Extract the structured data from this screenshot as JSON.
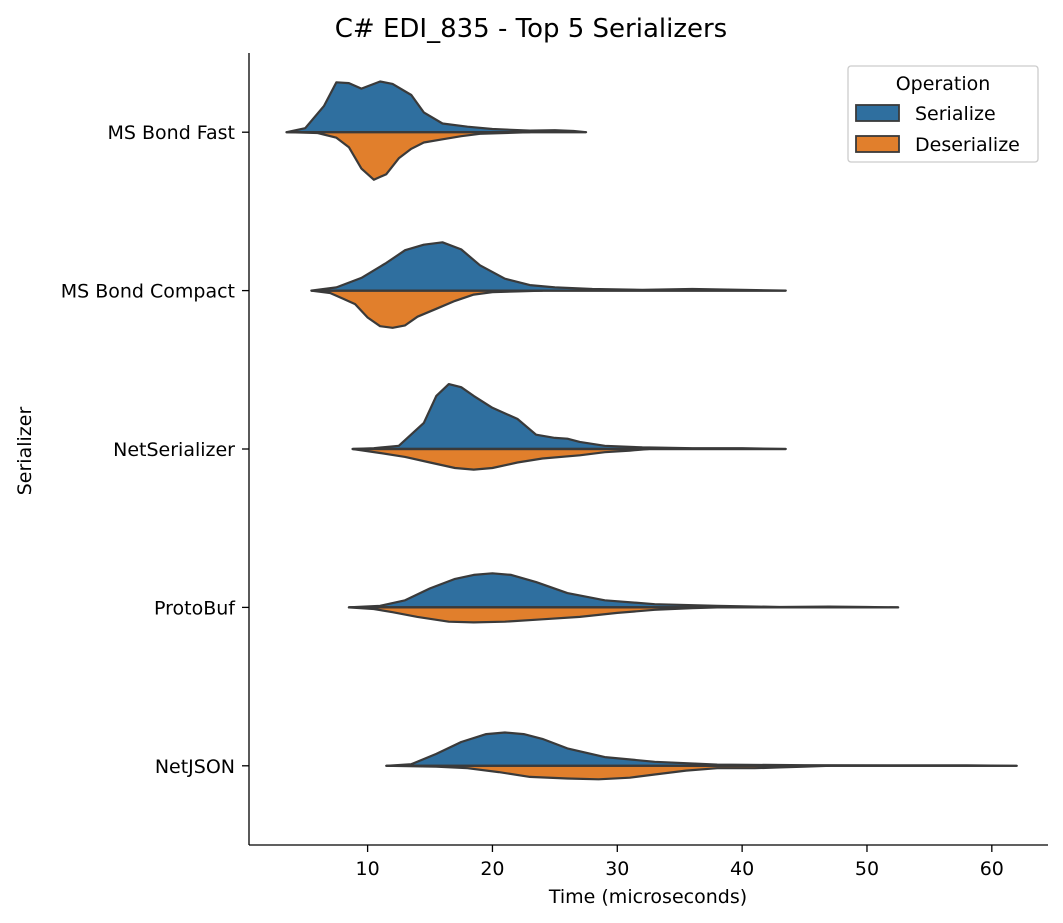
{
  "chart_data": {
    "type": "violin",
    "title": "C# EDI_835 - Top 5 Serializers",
    "xlabel": "Time (microseconds)",
    "ylabel": "Serializer",
    "xlim": [
      0.5,
      64.5
    ],
    "xticks": [
      10,
      20,
      30,
      40,
      50,
      60
    ],
    "split": true,
    "grid": false,
    "legend": {
      "title": "Operation",
      "position": "top-right",
      "entries": [
        {
          "label": "Serialize",
          "color": "#2f6f9f"
        },
        {
          "label": "Deserialize",
          "color": "#e17f2c"
        }
      ]
    },
    "categories": [
      "MS Bond Fast",
      "MS Bond Compact",
      "NetSerializer",
      "ProtoBuf",
      "NetJSON"
    ],
    "series": [
      {
        "name": "Serialize",
        "color": "#2f6f9f",
        "shapes": [
          [
            [
              3.5,
              0
            ],
            [
              5,
              0.05
            ],
            [
              6.5,
              0.33
            ],
            [
              7.5,
              0.63
            ],
            [
              8.5,
              0.62
            ],
            [
              9.5,
              0.55
            ],
            [
              11,
              0.64
            ],
            [
              12,
              0.61
            ],
            [
              13.5,
              0.47
            ],
            [
              14.5,
              0.25
            ],
            [
              16,
              0.11
            ],
            [
              18,
              0.07
            ],
            [
              20,
              0.04
            ],
            [
              23,
              0.02
            ],
            [
              25,
              0.025
            ],
            [
              26.5,
              0.015
            ],
            [
              27.5,
              0
            ]
          ],
          [
            [
              5.5,
              0
            ],
            [
              7.5,
              0.04
            ],
            [
              9.5,
              0.16
            ],
            [
              11.5,
              0.35
            ],
            [
              13,
              0.51
            ],
            [
              14.5,
              0.58
            ],
            [
              16,
              0.61
            ],
            [
              17.5,
              0.52
            ],
            [
              19,
              0.32
            ],
            [
              21,
              0.15
            ],
            [
              23,
              0.07
            ],
            [
              25,
              0.04
            ],
            [
              28,
              0.02
            ],
            [
              32,
              0.01
            ],
            [
              36,
              0.02
            ],
            [
              40,
              0.01
            ],
            [
              43.5,
              0
            ]
          ],
          [
            [
              8.8,
              0
            ],
            [
              10.5,
              0.01
            ],
            [
              12.5,
              0.04
            ],
            [
              14.5,
              0.33
            ],
            [
              15.5,
              0.67
            ],
            [
              16.5,
              0.82
            ],
            [
              17.5,
              0.78
            ],
            [
              18.5,
              0.67
            ],
            [
              20,
              0.52
            ],
            [
              22,
              0.38
            ],
            [
              23.5,
              0.18
            ],
            [
              25,
              0.14
            ],
            [
              26,
              0.13
            ],
            [
              27,
              0.09
            ],
            [
              29,
              0.04
            ],
            [
              32,
              0.02
            ],
            [
              36,
              0.01
            ],
            [
              40,
              0.01
            ],
            [
              43.5,
              0
            ]
          ],
          [
            [
              8.5,
              0
            ],
            [
              11,
              0.02
            ],
            [
              13,
              0.09
            ],
            [
              15,
              0.24
            ],
            [
              17,
              0.36
            ],
            [
              18.5,
              0.41
            ],
            [
              20,
              0.43
            ],
            [
              21.5,
              0.41
            ],
            [
              23.5,
              0.32
            ],
            [
              26,
              0.18
            ],
            [
              29,
              0.09
            ],
            [
              33,
              0.04
            ],
            [
              38,
              0.02
            ],
            [
              43,
              0.005
            ],
            [
              47,
              0.01
            ],
            [
              50,
              0.005
            ],
            [
              52.5,
              0
            ]
          ],
          [
            [
              11.5,
              0
            ],
            [
              13.5,
              0.02
            ],
            [
              15.5,
              0.15
            ],
            [
              17.5,
              0.3
            ],
            [
              19.5,
              0.4
            ],
            [
              21,
              0.42
            ],
            [
              22.5,
              0.4
            ],
            [
              24,
              0.34
            ],
            [
              26,
              0.22
            ],
            [
              29,
              0.11
            ],
            [
              33,
              0.05
            ],
            [
              38,
              0.015
            ],
            [
              45,
              0.008
            ],
            [
              52,
              0.005
            ],
            [
              58,
              0.005
            ],
            [
              62,
              0
            ]
          ]
        ]
      },
      {
        "name": "Deserialize",
        "color": "#e17f2c",
        "shapes": [
          [
            [
              3.5,
              0
            ],
            [
              6,
              0.01
            ],
            [
              7.5,
              0.07
            ],
            [
              8.5,
              0.19
            ],
            [
              9.5,
              0.46
            ],
            [
              10.5,
              0.6
            ],
            [
              11.5,
              0.53
            ],
            [
              12.5,
              0.33
            ],
            [
              13.5,
              0.21
            ],
            [
              14.5,
              0.13
            ],
            [
              16,
              0.09
            ],
            [
              17.5,
              0.05
            ],
            [
              19,
              0.02
            ],
            [
              21,
              0.01
            ],
            [
              23,
              0
            ]
          ],
          [
            [
              5.5,
              0
            ],
            [
              7,
              0.03
            ],
            [
              8,
              0.1
            ],
            [
              9,
              0.17
            ],
            [
              10,
              0.34
            ],
            [
              11,
              0.45
            ],
            [
              12,
              0.47
            ],
            [
              13,
              0.44
            ],
            [
              14,
              0.33
            ],
            [
              15.5,
              0.23
            ],
            [
              17,
              0.13
            ],
            [
              18.5,
              0.05
            ],
            [
              20,
              0.02
            ],
            [
              22,
              0.01
            ],
            [
              24,
              0
            ]
          ],
          [
            [
              8.8,
              0
            ],
            [
              11,
              0.05
            ],
            [
              13,
              0.1
            ],
            [
              15,
              0.17
            ],
            [
              17,
              0.24
            ],
            [
              18.5,
              0.26
            ],
            [
              20,
              0.24
            ],
            [
              22,
              0.17
            ],
            [
              24,
              0.12
            ],
            [
              27,
              0.08
            ],
            [
              29,
              0.04
            ],
            [
              31,
              0.02
            ],
            [
              32.5,
              0
            ]
          ],
          [
            [
              8.5,
              0
            ],
            [
              10.5,
              0.02
            ],
            [
              12,
              0.06
            ],
            [
              14,
              0.12
            ],
            [
              16.5,
              0.18
            ],
            [
              18.5,
              0.19
            ],
            [
              21,
              0.18
            ],
            [
              24,
              0.15
            ],
            [
              27,
              0.12
            ],
            [
              30,
              0.07
            ],
            [
              33,
              0.03
            ],
            [
              36,
              0.01
            ],
            [
              38,
              0
            ]
          ],
          [
            [
              11.5,
              0
            ],
            [
              15.5,
              0.01
            ],
            [
              18,
              0.03
            ],
            [
              20.5,
              0.08
            ],
            [
              23,
              0.14
            ],
            [
              26,
              0.16
            ],
            [
              28.5,
              0.17
            ],
            [
              31,
              0.15
            ],
            [
              33,
              0.11
            ],
            [
              35.5,
              0.06
            ],
            [
              38,
              0.03
            ],
            [
              41,
              0.03
            ],
            [
              43,
              0.02
            ],
            [
              45,
              0.01
            ],
            [
              47,
              0
            ]
          ]
        ]
      }
    ]
  }
}
